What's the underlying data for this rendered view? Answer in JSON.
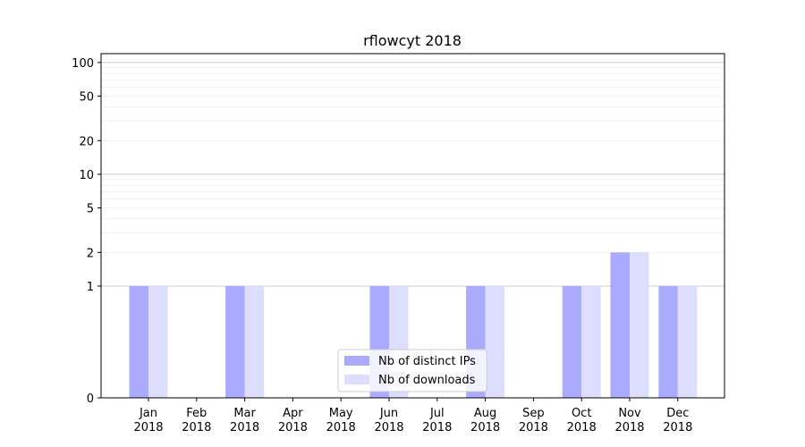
{
  "chart_data": {
    "type": "bar",
    "title": "rflowcyt 2018",
    "xlabel": "",
    "ylabel": "",
    "yscale": "symlog",
    "ylim": [
      0,
      120
    ],
    "grid": "horizontal major and minor",
    "legend_position": "lower-center",
    "categories": [
      "Jan\n2018",
      "Feb\n2018",
      "Mar\n2018",
      "Apr\n2018",
      "May\n2018",
      "Jun\n2018",
      "Jul\n2018",
      "Aug\n2018",
      "Sep\n2018",
      "Oct\n2018",
      "Nov\n2018",
      "Dec\n2018"
    ],
    "y_ticks": [
      "0",
      "1",
      "2",
      "5",
      "10",
      "20",
      "50",
      "100"
    ],
    "series": [
      {
        "name": "Nb of distinct IPs",
        "color": "#aaaaff",
        "values": [
          1,
          0,
          1,
          0,
          0,
          1,
          0,
          1,
          0,
          1,
          2,
          1
        ]
      },
      {
        "name": "Nb of downloads",
        "color": "#ddddff",
        "values": [
          1,
          0,
          1,
          0,
          0,
          1,
          0,
          1,
          0,
          1,
          2,
          1
        ]
      }
    ]
  }
}
